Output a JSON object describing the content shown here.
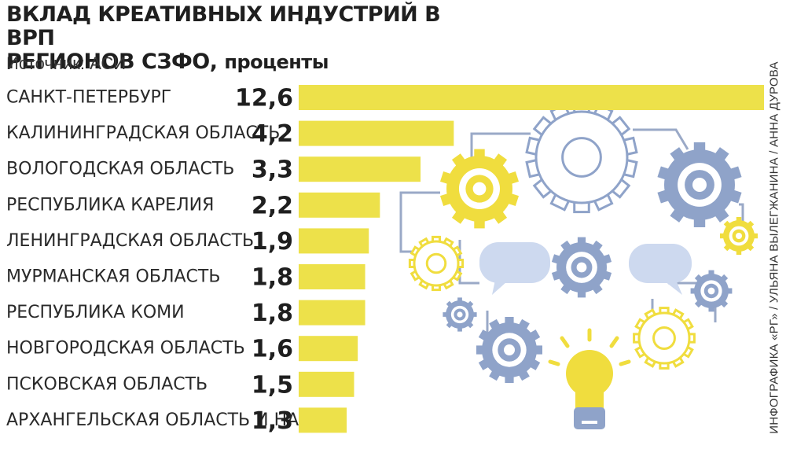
{
  "header": {
    "title_line1": "ВКЛАД КРЕАТИВНЫХ ИНДУСТРИЙ В ВРП",
    "title_line2": "РЕГИОНОВ СЗФО,",
    "title_unit": "проценты",
    "source": "Источник: АСИ",
    "credit": "ИНФОГРАФИКА «РГ» / УЛЬЯНА ВЫЛЕГЖАНИНА / АННА ДУРОВА"
  },
  "colors": {
    "bar": "#ede14a",
    "gear_yellow": "#f0dd3e",
    "gear_blue": "#8fa3c9",
    "bubble": "#cdd9ef",
    "line": "#9aa9c7"
  },
  "chart_data": {
    "type": "bar",
    "orientation": "horizontal",
    "categories": [
      "САНКТ-ПЕТЕРБУРГ",
      "КАЛИНИНГРАДСКАЯ ОБЛАСТЬ",
      "ВОЛОГОДСКАЯ ОБЛАСТЬ",
      "РЕСПУБЛИКА КАРЕЛИЯ",
      "ЛЕНИНГРАДСКАЯ ОБЛАСТЬ",
      "МУРМАНСКАЯ ОБЛАСТЬ",
      "РЕСПУБЛИКА КОМИ",
      "НОВГОРОДСКАЯ ОБЛАСТЬ",
      "ПСКОВСКАЯ ОБЛАСТЬ",
      "АРХАНГЕЛЬСКАЯ ОБЛАСТЬ И НАО"
    ],
    "values": [
      12.6,
      4.2,
      3.3,
      2.2,
      1.9,
      1.8,
      1.8,
      1.6,
      1.5,
      1.3
    ],
    "value_labels": [
      "12,6",
      "4,2",
      "3,3",
      "2,2",
      "1,9",
      "1,8",
      "1,8",
      "1,6",
      "1,5",
      "1,3"
    ],
    "xlim": [
      0,
      12.6
    ],
    "grid": false,
    "legend": "none"
  }
}
